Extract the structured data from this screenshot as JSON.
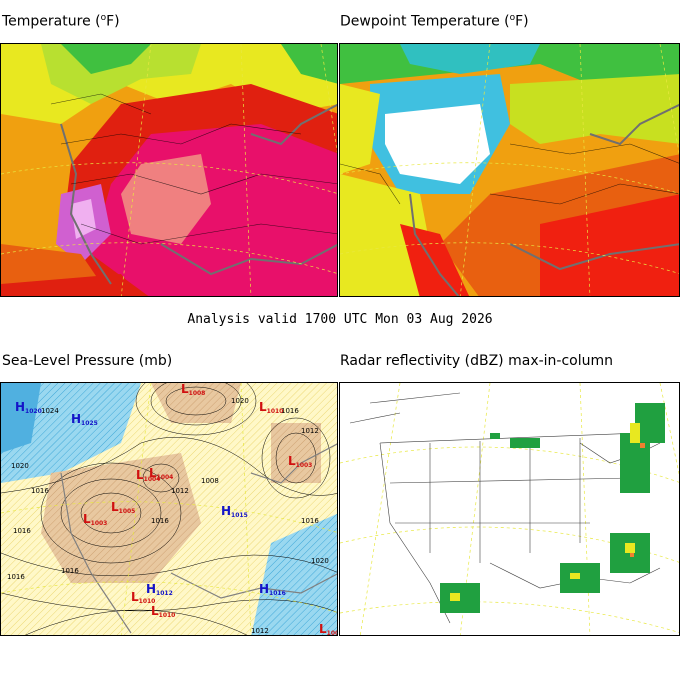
{
  "panels": {
    "temperature": {
      "title_main": "Temperature (",
      "title_sup": "o",
      "title_end": "F)"
    },
    "dewpoint": {
      "title_main": "Dewpoint Temperature (",
      "title_sup": "o",
      "title_end": "F)"
    },
    "pressure": {
      "title": "Sea-Level Pressure (mb)"
    },
    "radar": {
      "title": "Radar reflectivity (dBZ) max-in-column"
    }
  },
  "valid_time": "Analysis valid 1700 UTC Mon 03 Aug 2026",
  "pressure_centers": [
    {
      "type": "H",
      "value": "1020",
      "color": "#1414c8"
    },
    {
      "type": "H",
      "value": "1025",
      "color": "#1414c8"
    },
    {
      "type": "L",
      "value": "1008",
      "color": "#d01010"
    },
    {
      "type": "L",
      "value": "1010",
      "color": "#d01010"
    },
    {
      "type": "L",
      "value": "1003",
      "color": "#d01010"
    },
    {
      "type": "L",
      "value": "1004",
      "color": "#d01010"
    },
    {
      "type": "L",
      "value": "1005",
      "color": "#d01010"
    },
    {
      "type": "L",
      "value": "1003",
      "color": "#d01010"
    },
    {
      "type": "L",
      "value": "1004",
      "color": "#d01010"
    },
    {
      "type": "H",
      "value": "1015",
      "color": "#1414c8"
    },
    {
      "type": "H",
      "value": "1012",
      "color": "#1414c8"
    },
    {
      "type": "L",
      "value": "1010",
      "color": "#d01010"
    },
    {
      "type": "L",
      "value": "1010",
      "color": "#d01010"
    },
    {
      "type": "H",
      "value": "1016",
      "color": "#1414c8"
    },
    {
      "type": "L",
      "value": "1008",
      "color": "#d01010"
    }
  ],
  "isobar_labels": [
    "1016",
    "1016",
    "1020",
    "1024",
    "1020",
    "1016",
    "1012",
    "1008",
    "1012",
    "1016",
    "1020",
    "1016",
    "1016",
    "1016",
    "1012"
  ],
  "colors": {
    "temp_hot": "#e8106a",
    "temp_warm": "#e02010",
    "temp_mild": "#f0a010",
    "temp_cool": "#e8e820",
    "dew_dry": "#ffffff",
    "dew_moist": "#f02010",
    "slp_low": "#d8a878",
    "slp_high": "#40b0e0",
    "radar_echo": "#20a040"
  }
}
